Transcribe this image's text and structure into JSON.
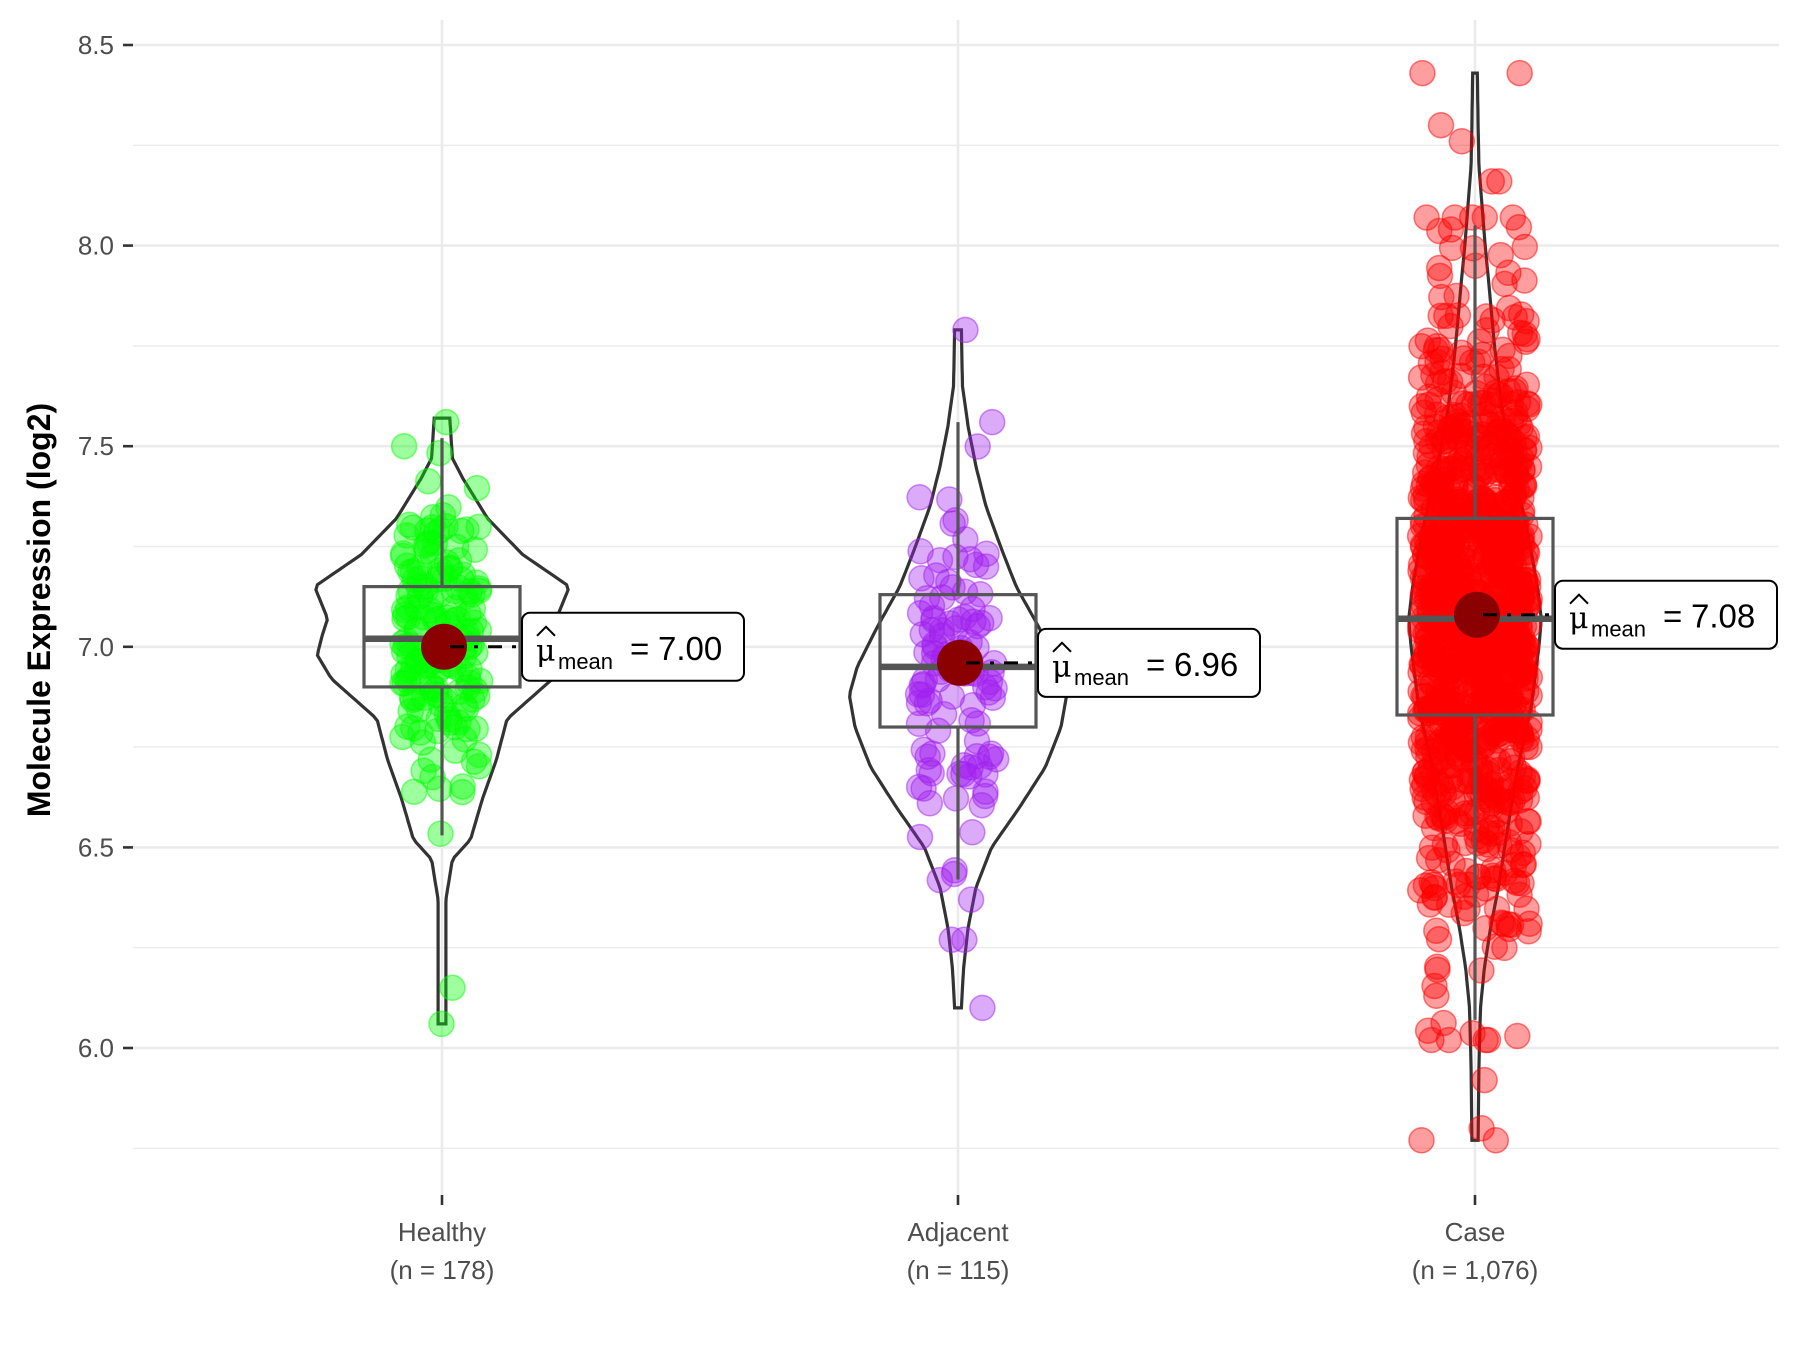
{
  "chart_data": {
    "type": "violin-box-jitter",
    "title": "",
    "xlabel": "",
    "ylabel": "Molecule Expression (log2)",
    "ylim": [
      5.68,
      8.55
    ],
    "y_ticks": [
      6.0,
      6.5,
      7.0,
      7.5,
      8.0,
      8.5
    ],
    "y_tick_labels": [
      "6.0",
      "6.5",
      "7.0",
      "7.5",
      "8.0",
      "8.5"
    ],
    "y_minor_ticks": [
      5.75,
      6.25,
      6.75,
      7.25,
      7.75,
      8.25
    ],
    "grid": true,
    "legend": "none",
    "mean_label_prefix": "μ",
    "mean_label_subscript": "mean",
    "mean_color": "#8B0000",
    "groups": [
      {
        "name": "Healthy",
        "n_label": "(n = 178)",
        "n": 178,
        "color": "#00FF00",
        "mean": 7.0,
        "mean_label": "7.00",
        "median": 7.02,
        "q1": 6.9,
        "q3": 7.15,
        "whisker_low": 6.53,
        "whisker_high": 7.52,
        "violin_min": 6.06,
        "violin_max": 7.57,
        "violin_density": [
          [
            6.06,
            0.03
          ],
          [
            6.2,
            0.03
          ],
          [
            6.37,
            0.03
          ],
          [
            6.47,
            0.08
          ],
          [
            6.52,
            0.22
          ],
          [
            6.62,
            0.31
          ],
          [
            6.72,
            0.42
          ],
          [
            6.82,
            0.5
          ],
          [
            6.92,
            0.85
          ],
          [
            6.98,
            0.96
          ],
          [
            7.03,
            0.92
          ],
          [
            7.07,
            0.88
          ],
          [
            7.15,
            0.98
          ],
          [
            7.23,
            0.62
          ],
          [
            7.32,
            0.35
          ],
          [
            7.42,
            0.16
          ],
          [
            7.47,
            0.08
          ],
          [
            7.52,
            0.07
          ],
          [
            7.57,
            0.06
          ]
        ],
        "outlier_points": [
          6.15,
          6.06,
          7.56,
          7.5
        ]
      },
      {
        "name": "Adjacent",
        "n_label": "(n = 115)",
        "n": 115,
        "color": "#A020F0",
        "mean": 6.96,
        "mean_label": "6.96",
        "median": 6.95,
        "q1": 6.8,
        "q3": 7.13,
        "whisker_low": 6.42,
        "whisker_high": 7.56,
        "violin_min": 6.1,
        "violin_max": 7.79,
        "violin_density": [
          [
            6.1,
            0.03
          ],
          [
            6.2,
            0.05
          ],
          [
            6.3,
            0.09
          ],
          [
            6.4,
            0.16
          ],
          [
            6.5,
            0.3
          ],
          [
            6.6,
            0.55
          ],
          [
            6.7,
            0.78
          ],
          [
            6.8,
            0.92
          ],
          [
            6.88,
            0.97
          ],
          [
            6.95,
            0.9
          ],
          [
            7.05,
            0.72
          ],
          [
            7.15,
            0.52
          ],
          [
            7.25,
            0.38
          ],
          [
            7.35,
            0.25
          ],
          [
            7.45,
            0.16
          ],
          [
            7.55,
            0.09
          ],
          [
            7.65,
            0.04
          ],
          [
            7.79,
            0.03
          ]
        ],
        "outlier_points": [
          7.79,
          6.1,
          6.27,
          6.27,
          7.56
        ]
      },
      {
        "name": "Case",
        "n_label": "(n = 1,076)",
        "n": 1076,
        "color": "#FF0000",
        "mean": 7.08,
        "mean_label": "7.08",
        "median": 7.07,
        "q1": 6.83,
        "q3": 7.32,
        "whisker_low": 6.07,
        "whisker_high": 8.05,
        "violin_min": 5.77,
        "violin_max": 8.43,
        "violin_density": [
          [
            5.77,
            0.04
          ],
          [
            5.95,
            0.05
          ],
          [
            6.1,
            0.07
          ],
          [
            6.2,
            0.12
          ],
          [
            6.3,
            0.2
          ],
          [
            6.4,
            0.3
          ],
          [
            6.55,
            0.42
          ],
          [
            6.7,
            0.55
          ],
          [
            6.85,
            0.72
          ],
          [
            7.0,
            0.82
          ],
          [
            7.07,
            0.85
          ],
          [
            7.15,
            0.8
          ],
          [
            7.3,
            0.66
          ],
          [
            7.45,
            0.48
          ],
          [
            7.6,
            0.34
          ],
          [
            7.75,
            0.25
          ],
          [
            7.9,
            0.18
          ],
          [
            8.0,
            0.13
          ],
          [
            8.1,
            0.09
          ],
          [
            8.2,
            0.05
          ],
          [
            8.3,
            0.04
          ],
          [
            8.43,
            0.03
          ]
        ],
        "outlier_points": [
          8.43,
          8.43,
          8.3,
          8.26,
          8.16,
          8.16,
          5.77,
          5.77,
          5.8,
          5.92,
          6.03,
          6.13
        ]
      }
    ]
  }
}
